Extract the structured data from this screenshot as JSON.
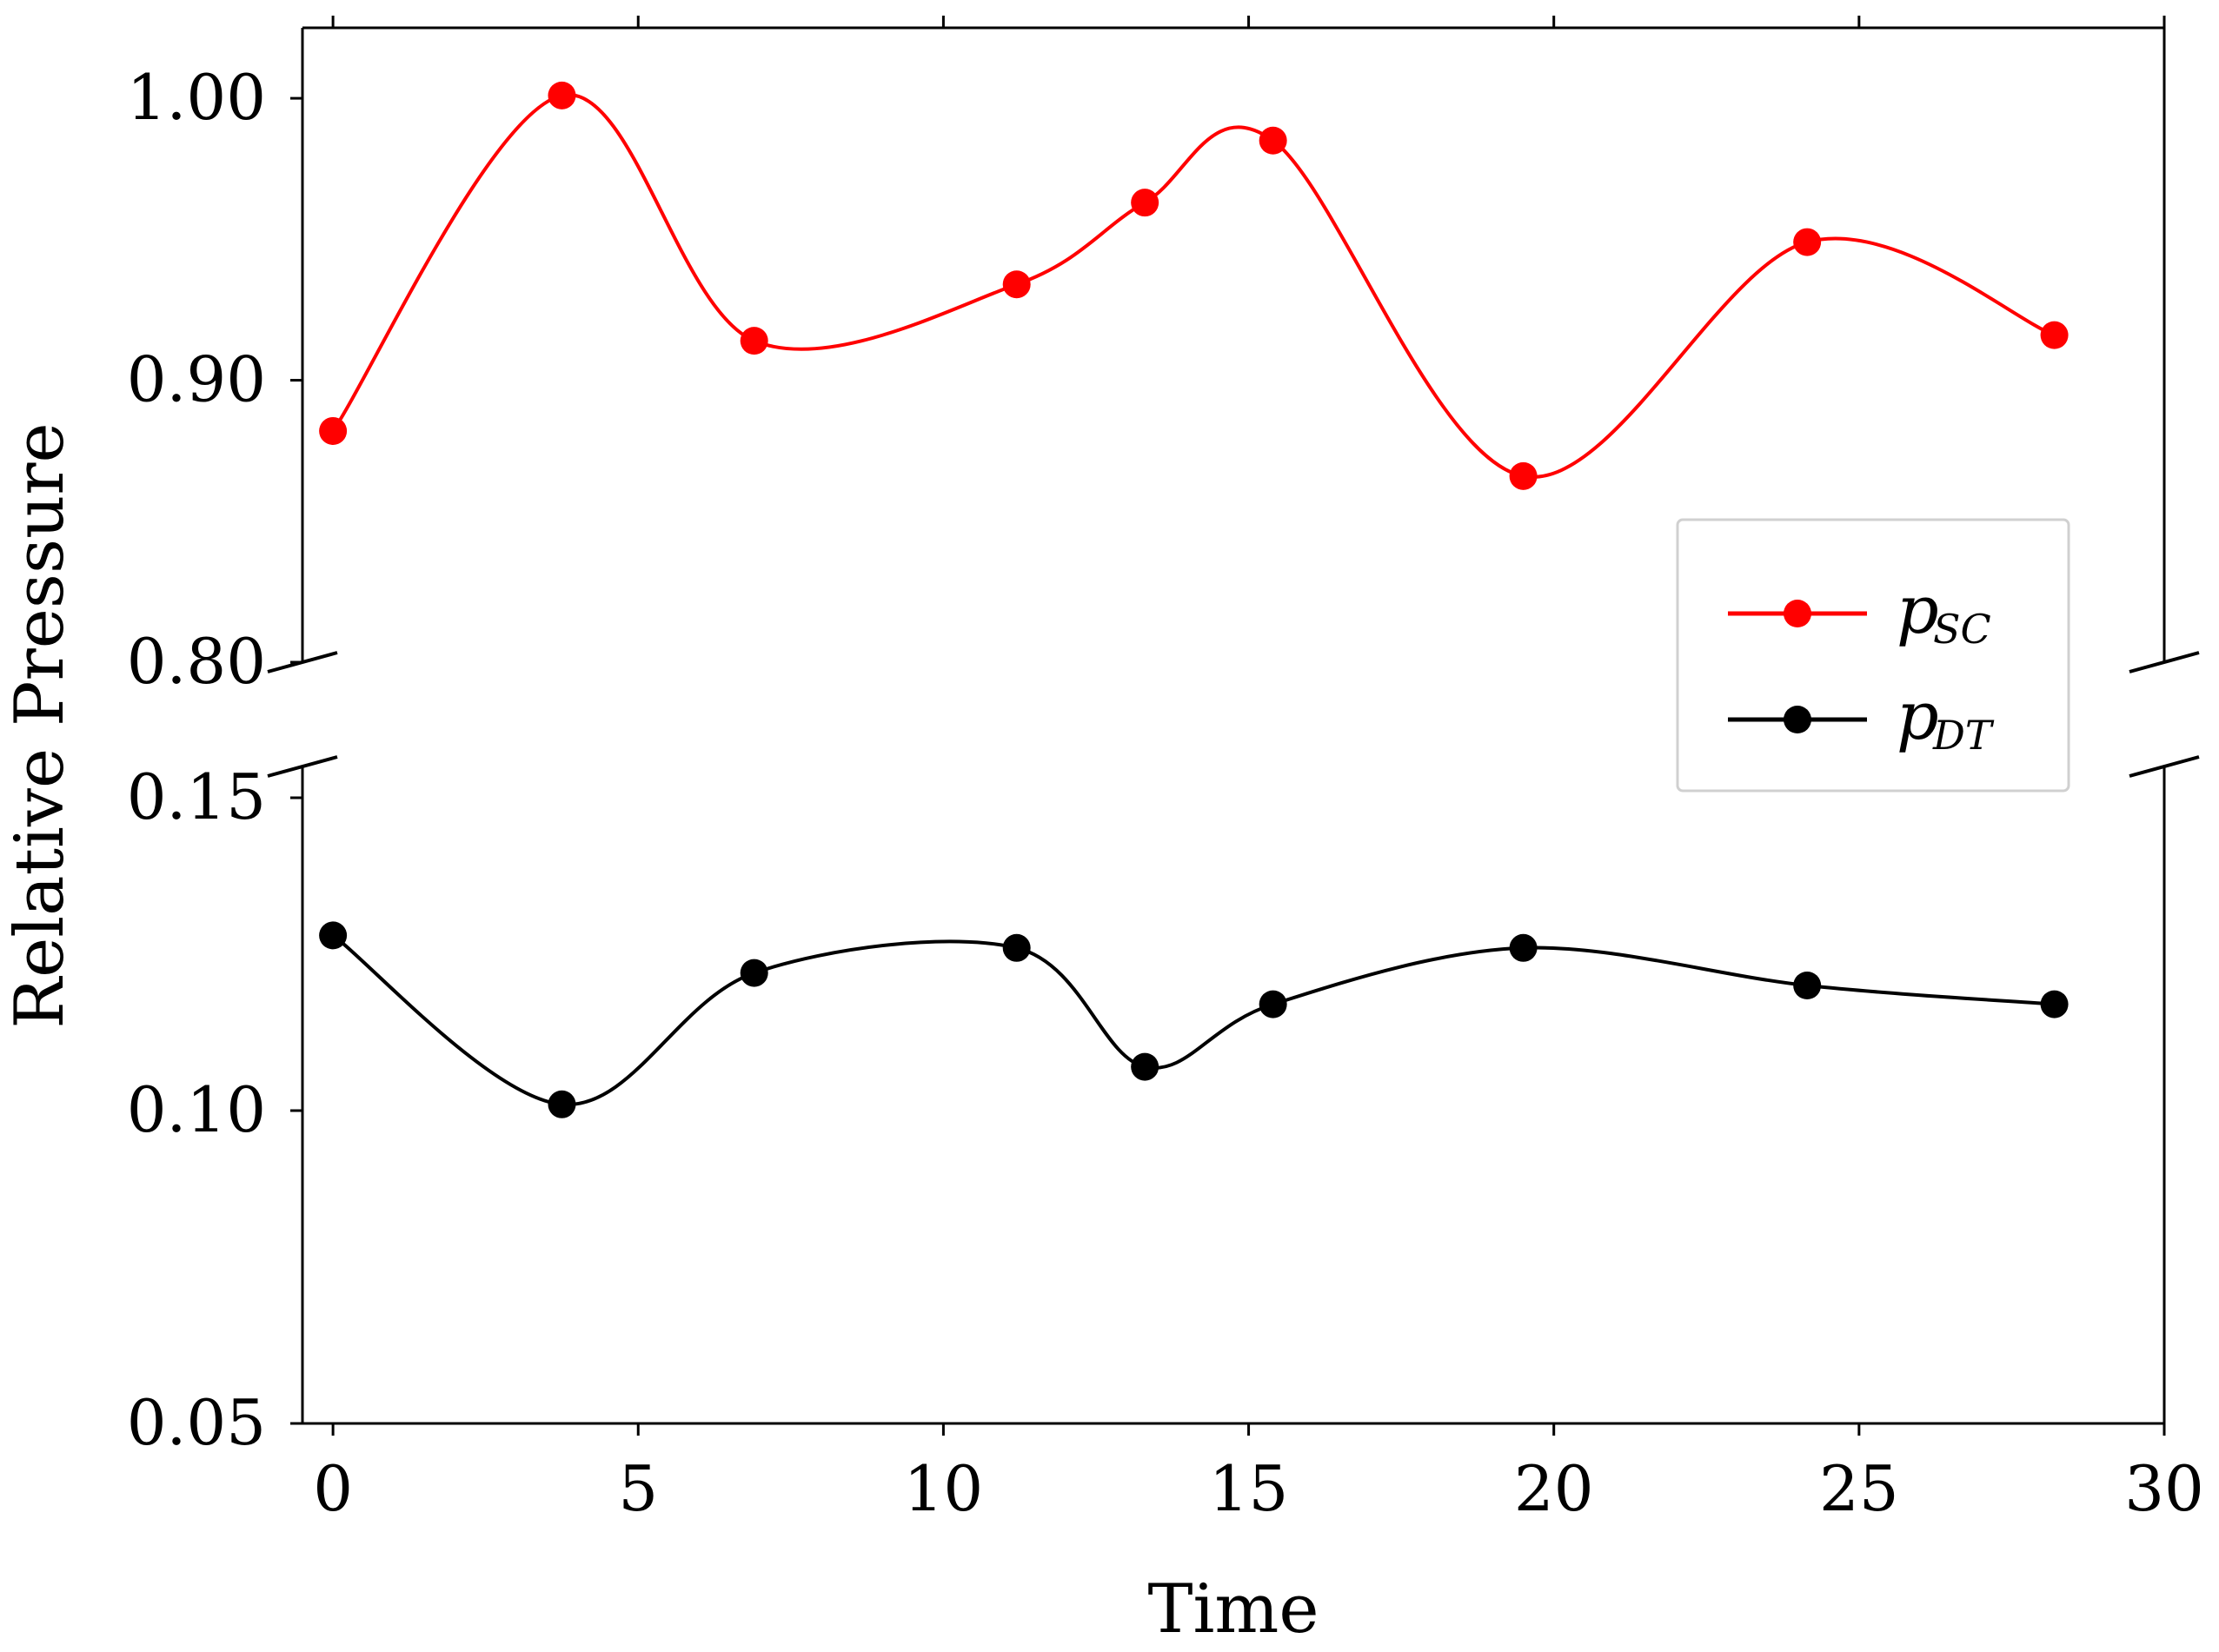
{
  "chart_data": {
    "type": "line",
    "title": "",
    "xlabel": "Time",
    "ylabel": "Relative Pressure",
    "xlim": [
      -0.5,
      30
    ],
    "x_ticks": [
      0,
      5,
      10,
      15,
      20,
      25,
      30
    ],
    "x_tick_labels": [
      "0",
      "5",
      "10",
      "15",
      "20",
      "25",
      "30"
    ],
    "broken_y_axis": true,
    "upper_panel": {
      "ylim": [
        0.8,
        1.025
      ],
      "ticks": [
        0.8,
        0.9,
        1.0
      ],
      "tick_labels": [
        "0.80",
        "0.90",
        "1.00"
      ]
    },
    "lower_panel": {
      "ylim": [
        0.05,
        0.155
      ],
      "ticks": [
        0.05,
        0.1,
        0.15
      ],
      "tick_labels": [
        "0.05",
        "0.10",
        "0.15"
      ]
    },
    "legend_position": "right",
    "series": [
      {
        "name": "p",
        "subscript": "SC",
        "color": "#ff0000",
        "panel": "upper",
        "x": [
          0,
          3.75,
          6.9,
          11.2,
          13.3,
          15.4,
          19.5,
          24.15,
          28.2
        ],
        "values": [
          0.882,
          1.001,
          0.914,
          0.934,
          0.963,
          0.985,
          0.866,
          0.949,
          0.916
        ]
      },
      {
        "name": "p",
        "subscript": "DT",
        "color": "#000000",
        "panel": "lower",
        "x": [
          0,
          3.75,
          6.9,
          11.2,
          13.3,
          15.4,
          19.5,
          24.15,
          28.2
        ],
        "values": [
          0.128,
          0.101,
          0.122,
          0.126,
          0.107,
          0.117,
          0.126,
          0.12,
          0.117
        ]
      }
    ]
  }
}
